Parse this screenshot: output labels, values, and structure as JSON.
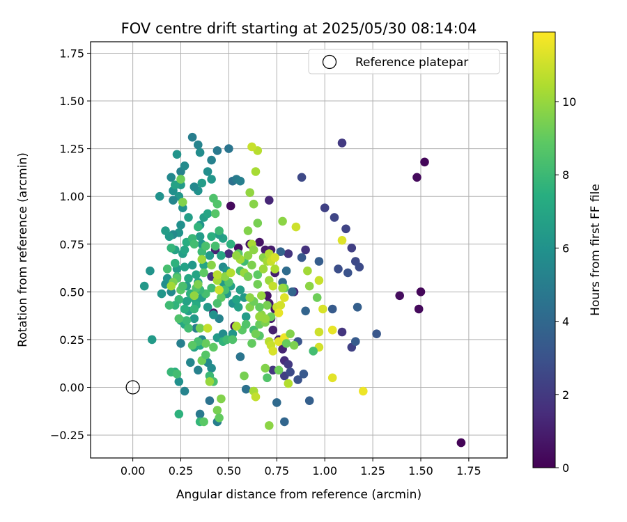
{
  "chart_data": {
    "type": "scatter",
    "title": "FOV centre drift starting at 2025/05/30 08:14:04",
    "xlabel": "Angular distance from reference (arcmin)",
    "ylabel": "Rotation from reference (arcmin)",
    "xlim": [
      -0.22,
      1.95
    ],
    "ylim": [
      -0.37,
      1.81
    ],
    "xticks": [
      0.0,
      0.25,
      0.5,
      0.75,
      1.0,
      1.25,
      1.5,
      1.75
    ],
    "xtick_labels": [
      "0.00",
      "0.25",
      "0.50",
      "0.75",
      "1.00",
      "1.25",
      "1.50",
      "1.75"
    ],
    "yticks": [
      -0.25,
      0.0,
      0.25,
      0.5,
      0.75,
      1.0,
      1.25,
      1.5,
      1.75
    ],
    "ytick_labels": [
      "−0.25",
      "0.00",
      "0.25",
      "0.50",
      "0.75",
      "1.00",
      "1.25",
      "1.50",
      "1.75"
    ],
    "grid": true,
    "legend": {
      "placement": "top-right",
      "entries": [
        "Reference platepar"
      ]
    },
    "reference_point": {
      "x": 0.0,
      "y": 0.0
    },
    "colorbar": {
      "label": "Hours from first FF file",
      "colormap": "viridis",
      "range": [
        0,
        11.9
      ],
      "ticks": [
        0,
        2,
        4,
        6,
        8,
        10
      ],
      "tick_labels": [
        "0",
        "2",
        "4",
        "6",
        "8",
        "10"
      ]
    },
    "point_fields": [
      "x",
      "y",
      "hours"
    ],
    "points": [
      [
        1.71,
        -0.29,
        0.1
      ],
      [
        1.52,
        1.18,
        0.2
      ],
      [
        1.48,
        1.1,
        0.3
      ],
      [
        1.5,
        0.5,
        0.2
      ],
      [
        1.49,
        0.41,
        0.3
      ],
      [
        1.39,
        0.48,
        0.4
      ],
      [
        0.51,
        0.95,
        0.3
      ],
      [
        0.55,
        0.73,
        0.5
      ],
      [
        0.42,
        0.39,
        0.6
      ],
      [
        0.53,
        0.32,
        0.5
      ],
      [
        0.61,
        0.75,
        0.7
      ],
      [
        0.66,
        0.76,
        0.6
      ],
      [
        0.69,
        0.72,
        0.8
      ],
      [
        0.72,
        0.72,
        0.9
      ],
      [
        0.74,
        0.6,
        1.0
      ],
      [
        0.7,
        0.48,
        0.7
      ],
      [
        0.71,
        0.44,
        0.8
      ],
      [
        0.74,
        0.41,
        0.6
      ],
      [
        0.72,
        0.36,
        0.9
      ],
      [
        0.73,
        0.3,
        1.0
      ],
      [
        0.76,
        0.25,
        1.1
      ],
      [
        0.78,
        0.2,
        1.2
      ],
      [
        0.71,
        0.98,
        1.3
      ],
      [
        0.6,
        0.58,
        1.4
      ],
      [
        0.5,
        0.7,
        1.5
      ],
      [
        0.43,
        0.72,
        1.2
      ],
      [
        0.41,
        0.58,
        1.6
      ],
      [
        0.79,
        0.14,
        1.5
      ],
      [
        0.84,
        0.5,
        1.4
      ],
      [
        0.9,
        0.72,
        1.7
      ],
      [
        0.81,
        0.7,
        1.8
      ],
      [
        1.09,
        1.28,
        2.0
      ],
      [
        1.0,
        0.94,
        2.3
      ],
      [
        1.05,
        0.89,
        2.5
      ],
      [
        1.11,
        0.83,
        2.4
      ],
      [
        1.14,
        0.73,
        2.2
      ],
      [
        1.16,
        0.66,
        2.6
      ],
      [
        1.18,
        0.63,
        2.7
      ],
      [
        1.07,
        0.62,
        2.8
      ],
      [
        1.12,
        0.6,
        3.0
      ],
      [
        1.09,
        0.29,
        1.8
      ],
      [
        1.14,
        0.21,
        2.3
      ],
      [
        1.16,
        0.24,
        3.4
      ],
      [
        1.17,
        0.42,
        3.6
      ],
      [
        1.27,
        0.28,
        3.2
      ],
      [
        1.04,
        0.41,
        3.4
      ],
      [
        0.97,
        0.66,
        3.5
      ],
      [
        0.9,
        0.4,
        3.8
      ],
      [
        0.88,
        0.68,
        3.3
      ],
      [
        0.88,
        1.1,
        2.6
      ],
      [
        0.73,
        0.09,
        1.9
      ],
      [
        0.79,
        0.06,
        2.2
      ],
      [
        0.81,
        0.12,
        2.0
      ],
      [
        0.82,
        0.08,
        2.7
      ],
      [
        0.86,
        0.04,
        3.0
      ],
      [
        0.89,
        0.07,
        3.3
      ],
      [
        0.92,
        -0.07,
        3.6
      ],
      [
        0.86,
        0.24,
        3.1
      ],
      [
        0.83,
        0.5,
        3.9
      ],
      [
        0.78,
        0.55,
        4.0
      ],
      [
        0.77,
        0.71,
        3.8
      ],
      [
        0.8,
        0.61,
        4.2
      ],
      [
        0.79,
        -0.18,
        3.9
      ],
      [
        0.75,
        -0.08,
        4.1
      ],
      [
        0.59,
        -0.01,
        4.4
      ],
      [
        0.56,
        0.16,
        4.6
      ],
      [
        0.4,
        -0.07,
        4.5
      ],
      [
        0.35,
        -0.14,
        4.8
      ],
      [
        0.44,
        -0.18,
        5.0
      ],
      [
        0.34,
        0.09,
        5.2
      ],
      [
        0.3,
        0.13,
        5.4
      ],
      [
        0.39,
        0.13,
        5.5
      ],
      [
        0.41,
        0.1,
        5.7
      ],
      [
        0.27,
        -0.02,
        5.3
      ],
      [
        0.24,
        0.03,
        5.9
      ],
      [
        0.25,
        0.23,
        5.1
      ],
      [
        0.2,
        0.5,
        5.6
      ],
      [
        0.17,
        0.54,
        5.8
      ],
      [
        0.18,
        0.57,
        6.0
      ],
      [
        0.15,
        0.49,
        6.2
      ],
      [
        0.09,
        0.61,
        6.1
      ],
      [
        0.06,
        0.53,
        6.3
      ],
      [
        0.1,
        0.25,
        6.4
      ],
      [
        0.14,
        1.0,
        6.0
      ],
      [
        0.2,
        1.1,
        5.5
      ],
      [
        0.21,
        1.03,
        5.9
      ],
      [
        0.23,
        1.22,
        6.1
      ],
      [
        0.25,
        1.13,
        5.2
      ],
      [
        0.27,
        1.16,
        5.6
      ],
      [
        0.31,
        1.31,
        5.0
      ],
      [
        0.34,
        1.27,
        5.3
      ],
      [
        0.35,
        1.23,
        5.7
      ],
      [
        0.41,
        1.19,
        5.2
      ],
      [
        0.44,
        1.24,
        4.8
      ],
      [
        0.5,
        1.25,
        4.6
      ],
      [
        0.52,
        1.08,
        4.4
      ],
      [
        0.54,
        1.09,
        4.9
      ],
      [
        0.56,
        1.08,
        5.1
      ],
      [
        0.39,
        1.13,
        5.8
      ],
      [
        0.41,
        1.09,
        6.2
      ],
      [
        0.36,
        1.07,
        6.5
      ],
      [
        0.34,
        1.03,
        6.0
      ],
      [
        0.32,
        1.05,
        5.5
      ],
      [
        0.25,
        1.06,
        6.4
      ],
      [
        0.22,
        1.06,
        6.8
      ],
      [
        0.24,
        1.0,
        6.2
      ],
      [
        0.26,
        0.94,
        5.9
      ],
      [
        0.21,
        0.98,
        5.4
      ],
      [
        0.29,
        0.89,
        6.6
      ],
      [
        0.25,
        0.85,
        5.9
      ],
      [
        0.24,
        0.81,
        6.1
      ],
      [
        0.21,
        0.8,
        5.6
      ],
      [
        0.19,
        0.79,
        6.3
      ],
      [
        0.17,
        0.82,
        6.5
      ],
      [
        0.22,
        0.72,
        6.8
      ],
      [
        0.26,
        0.7,
        6.6
      ],
      [
        0.27,
        0.72,
        7.0
      ],
      [
        0.23,
        0.62,
        6.4
      ],
      [
        0.27,
        0.63,
        6.8
      ],
      [
        0.29,
        0.57,
        7.1
      ],
      [
        0.33,
        0.59,
        6.9
      ],
      [
        0.31,
        0.64,
        6.3
      ],
      [
        0.28,
        0.53,
        6.5
      ],
      [
        0.34,
        0.55,
        6.7
      ],
      [
        0.37,
        0.64,
        7.0
      ],
      [
        0.4,
        0.69,
        6.4
      ],
      [
        0.36,
        0.75,
        6.2
      ],
      [
        0.35,
        0.79,
        6.5
      ],
      [
        0.35,
        0.85,
        6.1
      ],
      [
        0.37,
        0.89,
        6.6
      ],
      [
        0.39,
        0.91,
        6.9
      ],
      [
        0.47,
        0.78,
        6.8
      ],
      [
        0.45,
        0.8,
        6.5
      ],
      [
        0.46,
        0.69,
        7.1
      ],
      [
        0.47,
        0.63,
        5.7
      ],
      [
        0.49,
        0.61,
        6.2
      ],
      [
        0.47,
        0.55,
        6.4
      ],
      [
        0.51,
        0.53,
        6.7
      ],
      [
        0.49,
        0.49,
        6.3
      ],
      [
        0.52,
        0.44,
        6.0
      ],
      [
        0.54,
        0.46,
        6.9
      ],
      [
        0.56,
        0.51,
        6.6
      ],
      [
        0.58,
        0.47,
        6.3
      ],
      [
        0.55,
        0.42,
        6.7
      ],
      [
        0.59,
        0.37,
        6.5
      ],
      [
        0.52,
        0.28,
        6.2
      ],
      [
        0.44,
        0.26,
        6.4
      ],
      [
        0.45,
        0.36,
        5.3
      ],
      [
        0.47,
        0.28,
        5.7
      ],
      [
        0.42,
        0.38,
        6.0
      ],
      [
        0.39,
        0.42,
        6.3
      ],
      [
        0.36,
        0.47,
        6.6
      ],
      [
        0.33,
        0.45,
        6.8
      ],
      [
        0.31,
        0.47,
        7.0
      ],
      [
        0.28,
        0.45,
        6.8
      ],
      [
        0.29,
        0.4,
        6.6
      ],
      [
        0.32,
        0.36,
        6.4
      ],
      [
        0.25,
        0.35,
        6.9
      ],
      [
        0.27,
        0.33,
        7.2
      ],
      [
        0.33,
        0.31,
        5.0
      ],
      [
        0.36,
        0.25,
        5.6
      ],
      [
        0.32,
        0.21,
        6.8
      ],
      [
        0.35,
        0.22,
        7.2
      ],
      [
        0.33,
        0.43,
        7.3
      ],
      [
        0.3,
        0.49,
        7.6
      ],
      [
        0.32,
        0.41,
        7.8
      ],
      [
        0.27,
        0.41,
        7.5
      ],
      [
        0.24,
        0.46,
        7.9
      ],
      [
        0.22,
        0.43,
        7.7
      ],
      [
        0.19,
        0.43,
        8.1
      ],
      [
        0.18,
        0.62,
        8.3
      ],
      [
        0.23,
        0.58,
        8.0
      ],
      [
        0.2,
        0.73,
        7.8
      ],
      [
        0.22,
        0.65,
        7.6
      ],
      [
        0.28,
        0.76,
        7.4
      ],
      [
        0.31,
        0.78,
        7.9
      ],
      [
        0.32,
        0.75,
        8.2
      ],
      [
        0.34,
        0.84,
        7.7
      ],
      [
        0.36,
        0.71,
        8.0
      ],
      [
        0.38,
        0.74,
        8.4
      ],
      [
        0.42,
        0.99,
        8.5
      ],
      [
        0.44,
        0.96,
        8.6
      ],
      [
        0.43,
        0.91,
        8.7
      ],
      [
        0.45,
        0.82,
        8.0
      ],
      [
        0.41,
        0.79,
        7.5
      ],
      [
        0.43,
        0.74,
        8.3
      ],
      [
        0.51,
        0.75,
        7.6
      ],
      [
        0.55,
        0.7,
        8.8
      ],
      [
        0.58,
        0.66,
        8.1
      ],
      [
        0.56,
        0.61,
        8.4
      ],
      [
        0.5,
        0.55,
        8.6
      ],
      [
        0.48,
        0.51,
        8.3
      ],
      [
        0.46,
        0.47,
        8.9
      ],
      [
        0.44,
        0.44,
        8.4
      ],
      [
        0.41,
        0.52,
        8.1
      ],
      [
        0.38,
        0.49,
        8.3
      ],
      [
        0.35,
        0.51,
        7.9
      ],
      [
        0.33,
        0.52,
        8.6
      ],
      [
        0.29,
        0.31,
        8.2
      ],
      [
        0.28,
        0.35,
        8.0
      ],
      [
        0.24,
        0.36,
        8.5
      ],
      [
        0.23,
        0.57,
        8.7
      ],
      [
        0.25,
        0.51,
        8.8
      ],
      [
        0.26,
        0.53,
        8.4
      ],
      [
        0.22,
        0.08,
        7.4
      ],
      [
        0.2,
        0.08,
        7.9
      ],
      [
        0.23,
        0.07,
        8.2
      ],
      [
        0.24,
        -0.14,
        7.6
      ],
      [
        0.35,
        -0.18,
        7.8
      ],
      [
        0.4,
        0.06,
        8.0
      ],
      [
        0.42,
        0.03,
        8.4
      ],
      [
        0.47,
        0.24,
        7.7
      ],
      [
        0.49,
        0.25,
        8.1
      ],
      [
        0.52,
        0.25,
        8.5
      ],
      [
        0.54,
        0.32,
        8.3
      ],
      [
        0.57,
        0.3,
        8.8
      ],
      [
        0.59,
        0.33,
        8.6
      ],
      [
        0.63,
        0.3,
        8.2
      ],
      [
        0.66,
        0.27,
        8.7
      ],
      [
        0.62,
        0.23,
        9.0
      ],
      [
        0.64,
        0.28,
        9.3
      ],
      [
        0.66,
        0.33,
        9.1
      ],
      [
        0.69,
        0.34,
        9.5
      ],
      [
        0.72,
        0.37,
        9.2
      ],
      [
        0.67,
        0.38,
        9.8
      ],
      [
        0.69,
        0.36,
        10.0
      ],
      [
        0.7,
        0.43,
        9.4
      ],
      [
        0.66,
        0.42,
        9.0
      ],
      [
        0.61,
        0.42,
        9.6
      ],
      [
        0.63,
        0.45,
        9.2
      ],
      [
        0.61,
        0.47,
        9.8
      ],
      [
        0.67,
        0.48,
        10.0
      ],
      [
        0.65,
        0.54,
        9.3
      ],
      [
        0.65,
        0.59,
        8.9
      ],
      [
        0.62,
        0.64,
        9.5
      ],
      [
        0.6,
        0.69,
        9.8
      ],
      [
        0.56,
        0.67,
        10.2
      ],
      [
        0.54,
        0.69,
        9.9
      ],
      [
        0.58,
        0.6,
        10.0
      ],
      [
        0.6,
        0.58,
        9.4
      ],
      [
        0.62,
        0.75,
        10.3
      ],
      [
        0.63,
        0.72,
        9.8
      ],
      [
        0.65,
        0.86,
        9.4
      ],
      [
        0.6,
        0.82,
        9.6
      ],
      [
        0.63,
        0.96,
        9.7
      ],
      [
        0.61,
        1.02,
        9.9
      ],
      [
        0.64,
        1.13,
        10.3
      ],
      [
        0.65,
        1.24,
        10.6
      ],
      [
        0.62,
        1.26,
        10.9
      ],
      [
        0.68,
        0.68,
        9.7
      ],
      [
        0.7,
        0.66,
        10.2
      ],
      [
        0.71,
        0.7,
        10.5
      ],
      [
        0.73,
        0.68,
        10.7
      ],
      [
        0.74,
        0.62,
        10.4
      ],
      [
        0.71,
        0.56,
        10.1
      ],
      [
        0.73,
        0.53,
        10.8
      ],
      [
        0.75,
        0.42,
        10.9
      ],
      [
        0.77,
        0.43,
        11.1
      ],
      [
        0.79,
        0.47,
        11.3
      ],
      [
        0.76,
        0.39,
        11.5
      ],
      [
        0.71,
        0.24,
        10.6
      ],
      [
        0.72,
        0.22,
        10.9
      ],
      [
        0.73,
        0.19,
        11.2
      ],
      [
        0.76,
        0.24,
        11.4
      ],
      [
        0.79,
        0.26,
        11.6
      ],
      [
        0.82,
        0.28,
        9.6
      ],
      [
        0.84,
        0.22,
        9.5
      ],
      [
        0.8,
        0.23,
        9.1
      ],
      [
        0.78,
        0.87,
        9.8
      ],
      [
        0.85,
        0.84,
        11.0
      ],
      [
        0.91,
        0.61,
        10.2
      ],
      [
        0.92,
        0.53,
        9.8
      ],
      [
        0.96,
        0.47,
        9.2
      ],
      [
        0.97,
        0.56,
        10.9
      ],
      [
        0.99,
        0.41,
        11.2
      ],
      [
        0.97,
        0.29,
        11.0
      ],
      [
        1.04,
        0.3,
        11.5
      ],
      [
        1.09,
        0.77,
        11.3
      ],
      [
        0.97,
        0.21,
        11.1
      ],
      [
        0.94,
        0.19,
        8.2
      ],
      [
        1.04,
        0.05,
        11.4
      ],
      [
        1.2,
        -0.02,
        11.6
      ],
      [
        0.81,
        0.02,
        10.5
      ],
      [
        0.76,
        0.09,
        9.2
      ],
      [
        0.7,
        0.05,
        8.6
      ],
      [
        0.69,
        0.1,
        9.6
      ],
      [
        0.63,
        -0.02,
        10.3
      ],
      [
        0.64,
        -0.05,
        10.8
      ],
      [
        0.58,
        0.06,
        9.4
      ],
      [
        0.71,
        -0.2,
        9.8
      ],
      [
        0.46,
        -0.06,
        9.6
      ],
      [
        0.44,
        -0.12,
        9.4
      ],
      [
        0.45,
        -0.16,
        9.0
      ],
      [
        0.4,
        0.03,
        10.0
      ],
      [
        0.37,
        -0.18,
        8.8
      ],
      [
        0.36,
        0.14,
        9.2
      ],
      [
        0.35,
        0.31,
        9.3
      ],
      [
        0.42,
        0.21,
        8.9
      ],
      [
        0.38,
        0.23,
        9.1
      ],
      [
        0.38,
        0.17,
        8.7
      ],
      [
        0.34,
        0.24,
        8.3
      ],
      [
        0.31,
        0.22,
        8.8
      ],
      [
        0.44,
        0.56,
        10.3
      ],
      [
        0.48,
        0.58,
        9.8
      ],
      [
        0.51,
        0.6,
        10.5
      ],
      [
        0.45,
        0.51,
        11.0
      ],
      [
        0.41,
        0.64,
        9.7
      ],
      [
        0.37,
        0.6,
        8.9
      ],
      [
        0.36,
        0.67,
        10.1
      ],
      [
        0.34,
        0.54,
        9.5
      ],
      [
        0.32,
        0.48,
        9.9
      ],
      [
        0.21,
        0.55,
        9.4
      ],
      [
        0.2,
        0.53,
        10.2
      ],
      [
        0.26,
        0.97,
        9.6
      ],
      [
        0.25,
        1.09,
        9.2
      ],
      [
        0.44,
        0.59,
        10.6
      ],
      [
        0.39,
        0.31,
        10.8
      ],
      [
        0.54,
        0.32,
        10.4
      ],
      [
        0.66,
        0.37,
        10.0
      ],
      [
        0.68,
        0.62,
        10.1
      ],
      [
        0.72,
        0.66,
        10.9
      ],
      [
        0.74,
        0.68,
        11.2
      ],
      [
        0.79,
        0.52,
        8.9
      ],
      [
        0.78,
        0.52,
        10.0
      ]
    ]
  }
}
